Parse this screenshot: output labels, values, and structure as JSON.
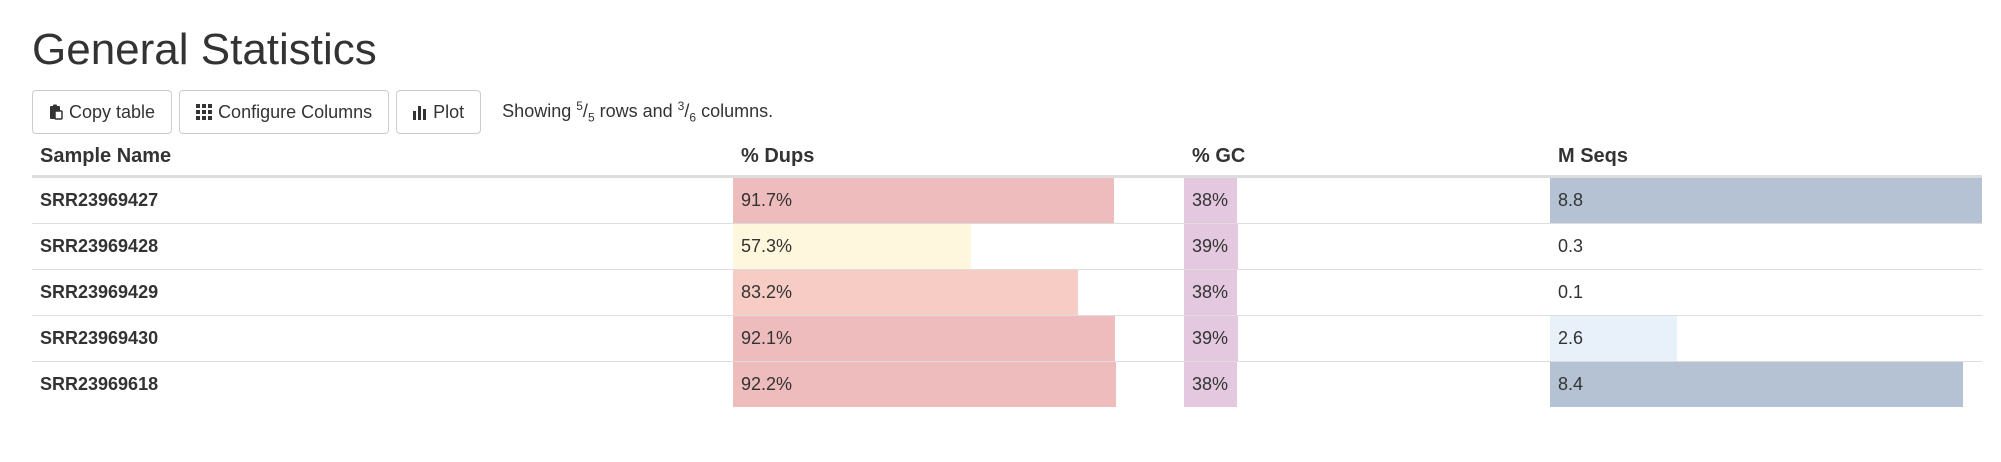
{
  "title": "General Statistics",
  "toolbar": {
    "copy_label": "Copy table",
    "configure_label": "Configure Columns",
    "plot_label": "Plot",
    "showing_prefix": "Showing ",
    "rows_shown": "5",
    "rows_total": "5",
    "rows_word": " rows and ",
    "cols_shown": "3",
    "cols_total": "6",
    "cols_word": " columns."
  },
  "table": {
    "headers": [
      "Sample Name",
      "% Dups",
      "% GC",
      "M Seqs"
    ],
    "rows": [
      {
        "name": "SRR23969427",
        "dups": "91.7%",
        "dups_fill": 0.917,
        "dups_color": "#eebcbc",
        "gc": "38%",
        "gc_fill": 0.38,
        "gc_color": "#e3c8df",
        "mseqs": "8.8",
        "mseqs_fill": 1.0,
        "mseqs_color": "#b5c2d4"
      },
      {
        "name": "SRR23969428",
        "dups": "57.3%",
        "dups_fill": 0.573,
        "dups_color": "#fef7dd",
        "gc": "39%",
        "gc_fill": 0.39,
        "gc_color": "#e3c8df",
        "mseqs": "0.3",
        "mseqs_fill": 0.0,
        "mseqs_color": "#ffffff"
      },
      {
        "name": "SRR23969429",
        "dups": "83.2%",
        "dups_fill": 0.832,
        "dups_color": "#f7ccc4",
        "gc": "38%",
        "gc_fill": 0.38,
        "gc_color": "#e3c8df",
        "mseqs": "0.1",
        "mseqs_fill": 0.0,
        "mseqs_color": "#ffffff"
      },
      {
        "name": "SRR23969430",
        "dups": "92.1%",
        "dups_fill": 0.921,
        "dups_color": "#eebcbc",
        "gc": "39%",
        "gc_fill": 0.39,
        "gc_color": "#e3c8df",
        "mseqs": "2.6",
        "mseqs_fill": 0.295,
        "mseqs_color": "#e8f1f9"
      },
      {
        "name": "SRR23969618",
        "dups": "92.2%",
        "dups_fill": 0.922,
        "dups_color": "#eebcbc",
        "gc": "38%",
        "gc_fill": 0.38,
        "gc_color": "#e3c8df",
        "mseqs": "8.4",
        "mseqs_fill": 0.955,
        "mseqs_color": "#b5c2d4"
      }
    ]
  }
}
